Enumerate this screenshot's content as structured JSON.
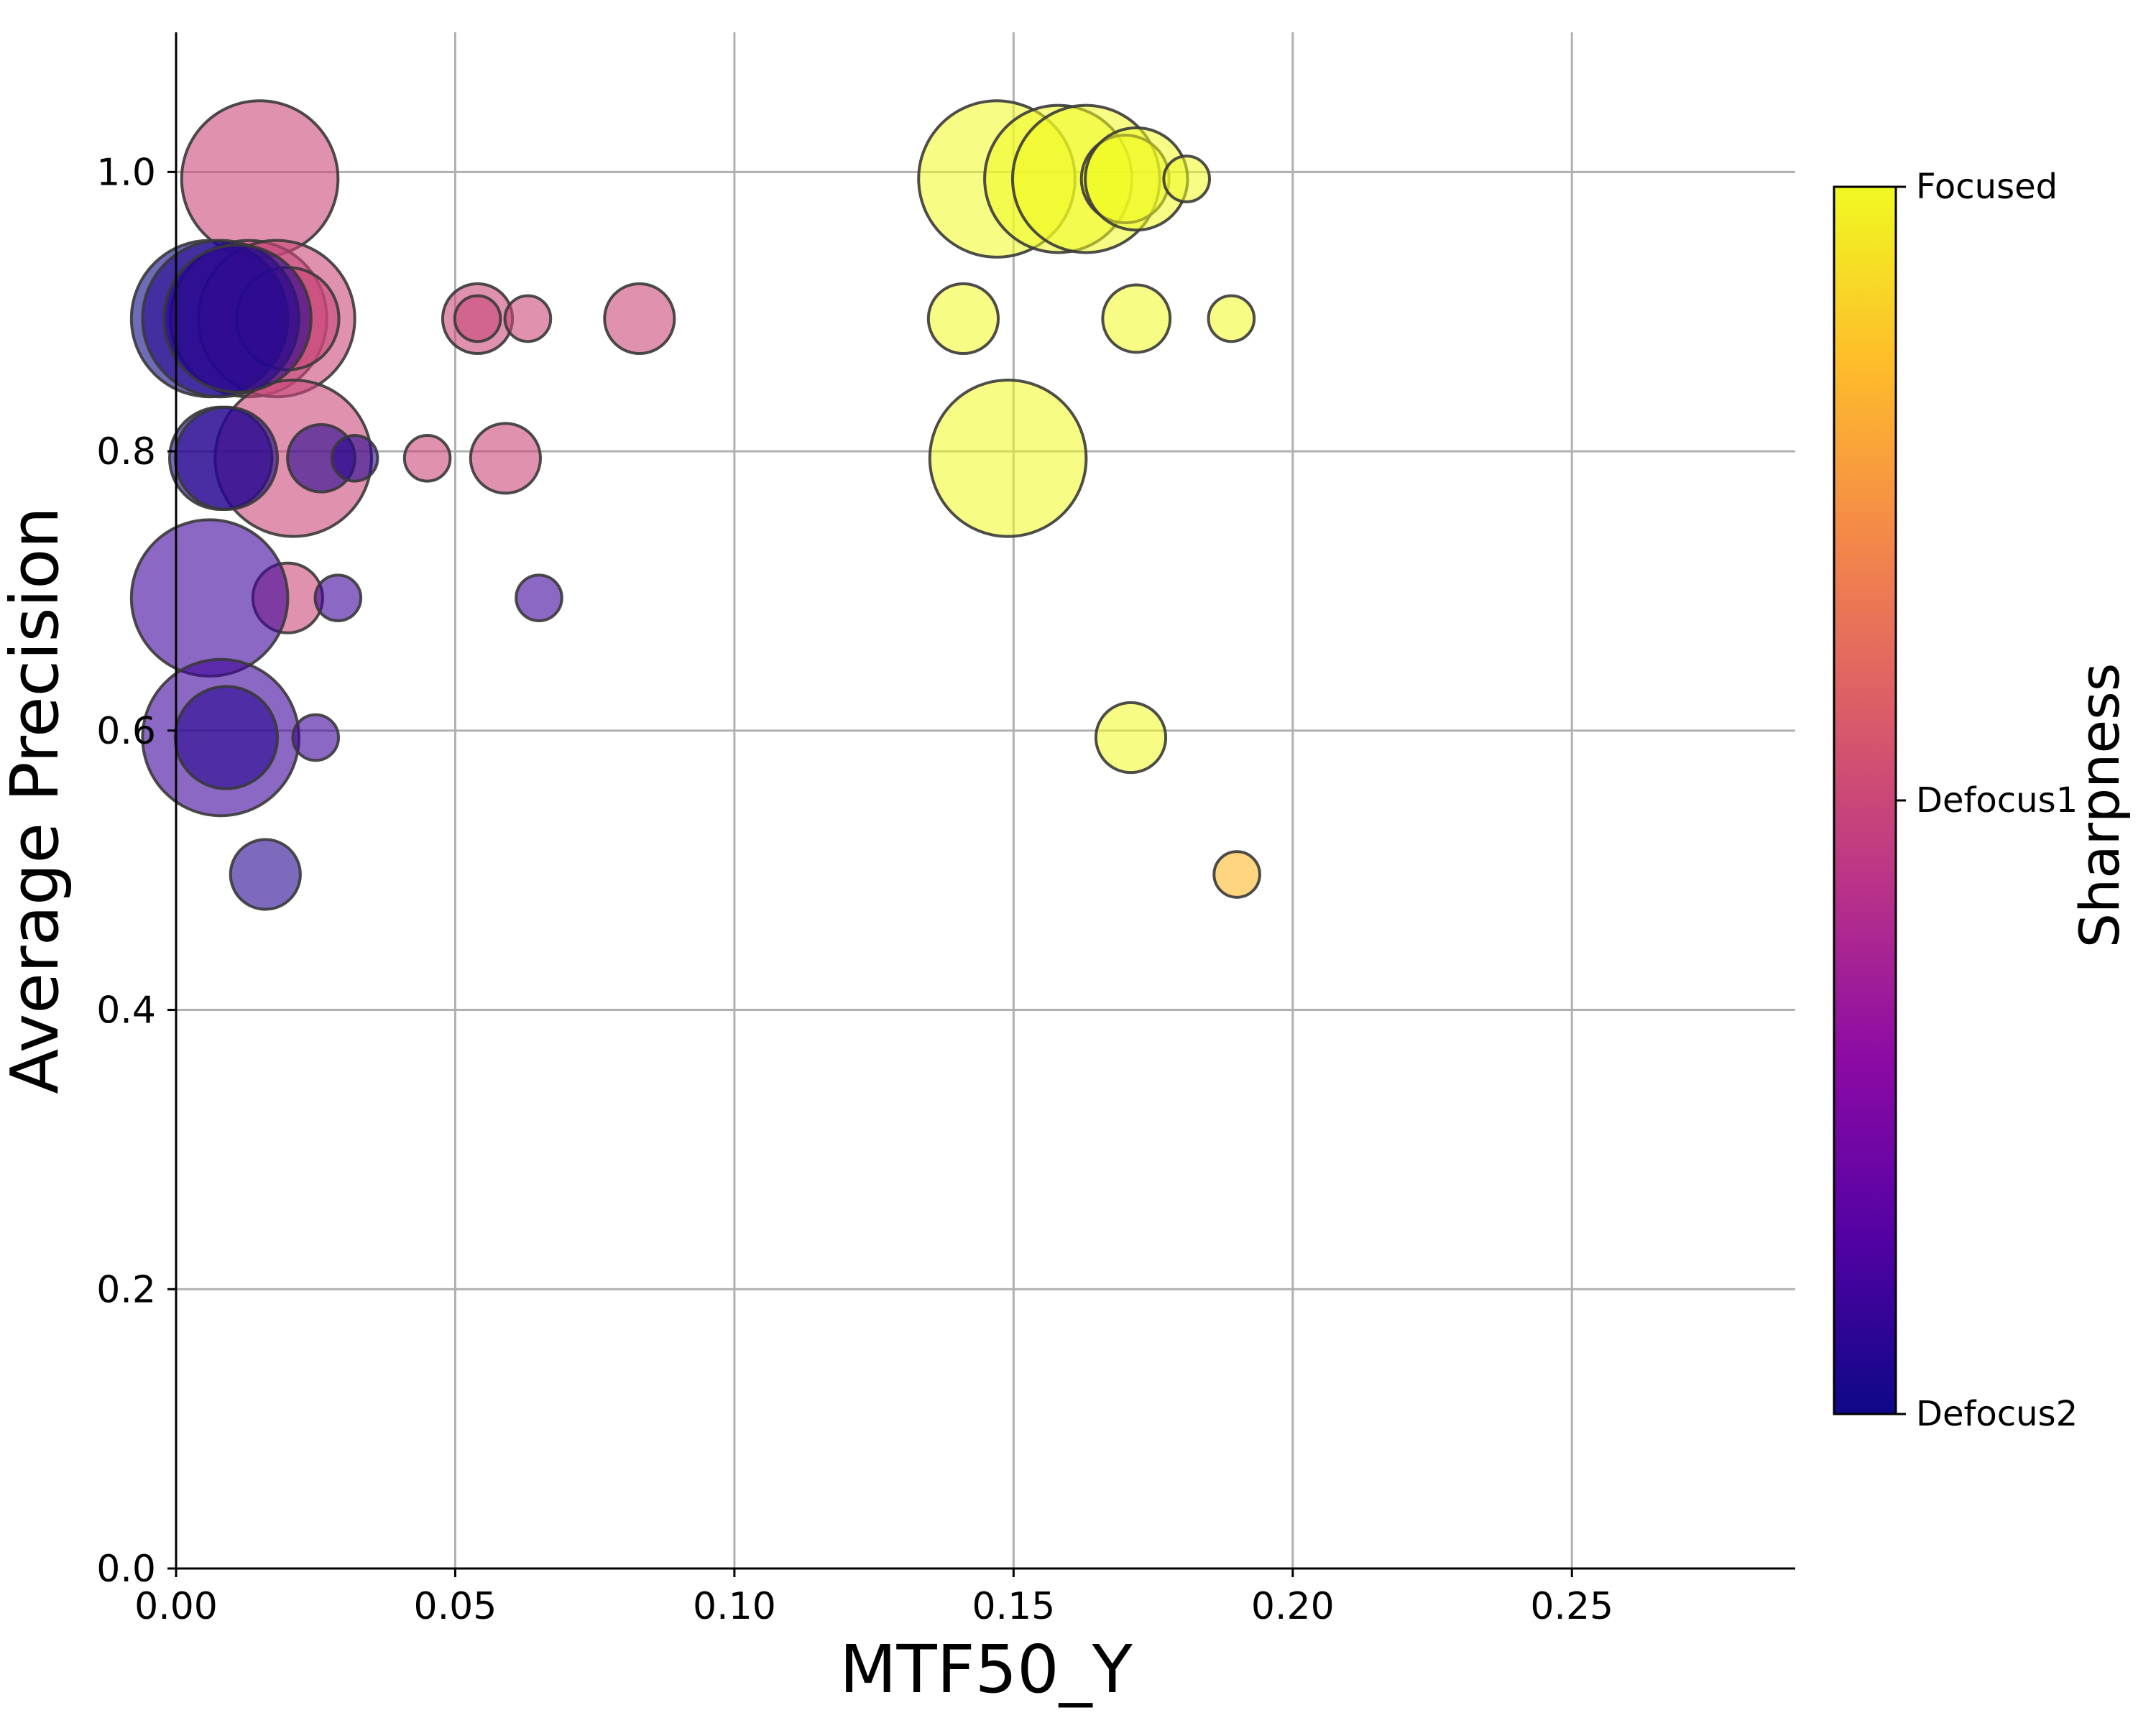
{
  "chart_data": {
    "type": "scatter",
    "title": "",
    "xlabel": "MTF50_Y",
    "ylabel": "Average Precision",
    "xlim": [
      0,
      0.29
    ],
    "ylim": [
      0,
      1.1
    ],
    "xticks": [
      "0.00",
      "0.05",
      "0.10",
      "0.15",
      "0.20",
      "0.25"
    ],
    "yticks": [
      "0.0",
      "0.2",
      "0.4",
      "0.6",
      "0.8",
      "1.0"
    ],
    "grid": true,
    "colorbar": {
      "title": "Sharpness",
      "colormap": "plasma",
      "ticks": [
        {
          "value": 0.0,
          "label": "Defocus2"
        },
        {
          "value": 0.5,
          "label": "Defocus1"
        },
        {
          "value": 1.0,
          "label": "Focused"
        }
      ]
    },
    "points": [
      {
        "x": 0.147,
        "y": 0.995,
        "size": 0.7,
        "sharpness": 1.0
      },
      {
        "x": 0.158,
        "y": 0.995,
        "size": 0.62,
        "sharpness": 1.0
      },
      {
        "x": 0.163,
        "y": 0.995,
        "size": 0.62,
        "sharpness": 1.0
      },
      {
        "x": 0.17,
        "y": 0.995,
        "size": 0.22,
        "sharpness": 1.0
      },
      {
        "x": 0.172,
        "y": 0.995,
        "size": 0.3,
        "sharpness": 1.0
      },
      {
        "x": 0.181,
        "y": 0.995,
        "size": 0.06,
        "sharpness": 1.0
      },
      {
        "x": 0.141,
        "y": 0.895,
        "size": 0.14,
        "sharpness": 1.0
      },
      {
        "x": 0.172,
        "y": 0.895,
        "size": 0.13,
        "sharpness": 1.0
      },
      {
        "x": 0.189,
        "y": 0.895,
        "size": 0.06,
        "sharpness": 1.0
      },
      {
        "x": 0.149,
        "y": 0.795,
        "size": 0.7,
        "sharpness": 1.0
      },
      {
        "x": 0.171,
        "y": 0.595,
        "size": 0.14,
        "sharpness": 1.0
      },
      {
        "x": 0.19,
        "y": 0.497,
        "size": 0.06,
        "sharpness": 0.85
      },
      {
        "x": 0.015,
        "y": 0.995,
        "size": 0.7,
        "sharpness": 0.5
      },
      {
        "x": 0.013,
        "y": 0.895,
        "size": 0.7,
        "sharpness": 0.5
      },
      {
        "x": 0.018,
        "y": 0.895,
        "size": 0.7,
        "sharpness": 0.5
      },
      {
        "x": 0.02,
        "y": 0.895,
        "size": 0.3,
        "sharpness": 0.5
      },
      {
        "x": 0.054,
        "y": 0.895,
        "size": 0.14,
        "sharpness": 0.5
      },
      {
        "x": 0.054,
        "y": 0.895,
        "size": 0.06,
        "sharpness": 0.5
      },
      {
        "x": 0.063,
        "y": 0.895,
        "size": 0.06,
        "sharpness": 0.5
      },
      {
        "x": 0.083,
        "y": 0.895,
        "size": 0.14,
        "sharpness": 0.5
      },
      {
        "x": 0.021,
        "y": 0.795,
        "size": 0.7,
        "sharpness": 0.5
      },
      {
        "x": 0.045,
        "y": 0.795,
        "size": 0.06,
        "sharpness": 0.5
      },
      {
        "x": 0.059,
        "y": 0.795,
        "size": 0.14,
        "sharpness": 0.5
      },
      {
        "x": 0.02,
        "y": 0.695,
        "size": 0.14,
        "sharpness": 0.5
      },
      {
        "x": 0.006,
        "y": 0.895,
        "size": 0.7,
        "sharpness": 0.0
      },
      {
        "x": 0.008,
        "y": 0.895,
        "size": 0.7,
        "sharpness": 0.05
      },
      {
        "x": 0.011,
        "y": 0.895,
        "size": 0.62,
        "sharpness": 0.05
      },
      {
        "x": 0.008,
        "y": 0.795,
        "size": 0.3,
        "sharpness": 0.05
      },
      {
        "x": 0.009,
        "y": 0.795,
        "size": 0.3,
        "sharpness": 0.05
      },
      {
        "x": 0.026,
        "y": 0.795,
        "size": 0.13,
        "sharpness": 0.05
      },
      {
        "x": 0.032,
        "y": 0.795,
        "size": 0.06,
        "sharpness": 0.05
      },
      {
        "x": 0.006,
        "y": 0.695,
        "size": 0.7,
        "sharpness": 0.1
      },
      {
        "x": 0.029,
        "y": 0.695,
        "size": 0.06,
        "sharpness": 0.1
      },
      {
        "x": 0.065,
        "y": 0.695,
        "size": 0.06,
        "sharpness": 0.1
      },
      {
        "x": 0.008,
        "y": 0.595,
        "size": 0.7,
        "sharpness": 0.1
      },
      {
        "x": 0.009,
        "y": 0.595,
        "size": 0.3,
        "sharpness": 0.05
      },
      {
        "x": 0.025,
        "y": 0.595,
        "size": 0.06,
        "sharpness": 0.1
      },
      {
        "x": 0.016,
        "y": 0.497,
        "size": 0.14,
        "sharpness": 0.05
      }
    ]
  },
  "colors": {
    "grid": "#b0b0b0",
    "axis": "#000000",
    "bubble_stroke": "#3a3a3a",
    "cmap_stops": [
      "#0d0887",
      "#5302a3",
      "#8b0aa5",
      "#b83289",
      "#db5c68",
      "#f48849",
      "#febd2a",
      "#f0f921"
    ]
  }
}
